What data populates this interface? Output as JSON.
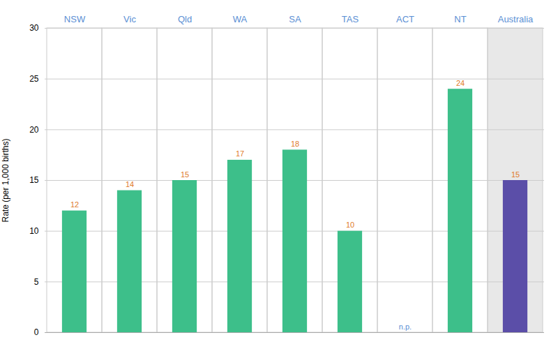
{
  "chart_data": {
    "type": "bar",
    "categories": [
      "NSW",
      "Vic",
      "Qld",
      "WA",
      "SA",
      "TAS",
      "ACT",
      "NT",
      "Australia"
    ],
    "values": [
      12,
      14,
      15,
      17,
      18,
      10,
      null,
      24,
      15
    ],
    "value_labels": [
      "12",
      "14",
      "15",
      "17",
      "18",
      "10",
      "n.p.",
      "24",
      "15"
    ],
    "colors": [
      "#3dbf8a",
      "#3dbf8a",
      "#3dbf8a",
      "#3dbf8a",
      "#3dbf8a",
      "#3dbf8a",
      "#3dbf8a",
      "#3dbf8a",
      "#5b4ea8"
    ],
    "ylabel": "Rate (per 1,000 births)",
    "ylim": [
      0,
      30
    ],
    "yticks": [
      0,
      5,
      10,
      15,
      20,
      25,
      30
    ],
    "grid": true,
    "data_labels": true
  }
}
